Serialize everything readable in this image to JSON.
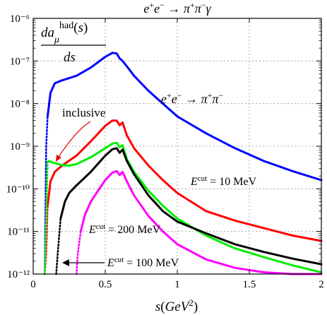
{
  "chart_data": {
    "type": "line",
    "title": "e+e− → π+π−γ",
    "xlabel": "s(GeV²)",
    "ylabel": "da_μ^had(s)/ds",
    "xlim": [
      0,
      2
    ],
    "ylim": [
      1e-12,
      1e-06
    ],
    "yscale": "log",
    "grid": true,
    "x_ticks": [
      0,
      0.5,
      1,
      1.5,
      2
    ],
    "x_tick_labels": [
      "0",
      "0.5",
      "1",
      "1.5",
      "2"
    ],
    "y_ticks": [
      1e-12,
      1e-11,
      1e-10,
      1e-09,
      1e-08,
      1e-07,
      1e-06
    ],
    "y_tick_labels": [
      "10⁻¹²",
      "10⁻¹¹",
      "10⁻¹⁰",
      "10⁻⁹",
      "10⁻⁸",
      "10⁻⁷",
      "10⁻⁶"
    ],
    "series": [
      {
        "name": "e+e− → π+π−",
        "color": "#0000ff",
        "x": [
          0.08,
          0.09,
          0.1,
          0.12,
          0.15,
          0.2,
          0.3,
          0.4,
          0.5,
          0.55,
          0.58,
          0.6,
          0.62,
          0.65,
          0.7,
          0.8,
          0.9,
          1.0,
          1.2,
          1.4,
          1.6,
          1.8,
          2.0
        ],
        "y": [
          1e-12,
          1e-09,
          5e-09,
          1.8e-08,
          3e-08,
          3.5e-08,
          4.5e-08,
          7e-08,
          1.25e-07,
          1.55e-07,
          1.5e-07,
          1.15e-07,
          1e-07,
          7.5e-08,
          4.5e-08,
          2e-08,
          1e-08,
          5e-09,
          2e-09,
          9e-10,
          4.5e-10,
          2.6e-10,
          1.6e-10
        ]
      },
      {
        "name": "E^cut = 10 MeV",
        "color": "#ff0000",
        "x": [
          0.08,
          0.09,
          0.1,
          0.12,
          0.15,
          0.2,
          0.3,
          0.4,
          0.5,
          0.55,
          0.58,
          0.6,
          0.62,
          0.65,
          0.7,
          0.8,
          0.9,
          1.0,
          1.2,
          1.4,
          1.6,
          1.8,
          2.0
        ],
        "y": [
          1e-12,
          3e-12,
          4e-11,
          1.5e-10,
          2.5e-10,
          3.5e-10,
          6e-10,
          1.3e-09,
          3e-09,
          4e-09,
          4e-09,
          3.1e-09,
          3.6e-09,
          1.8e-09,
          9e-10,
          3.5e-10,
          1.6e-10,
          8e-11,
          3e-11,
          1.8e-11,
          1.2e-11,
          8e-12,
          6e-12
        ]
      },
      {
        "name": "inclusive",
        "color": "#00ee00",
        "x": [
          0.08,
          0.09,
          0.1,
          0.11,
          0.12,
          0.15,
          0.2,
          0.25,
          0.3,
          0.4,
          0.5,
          0.55,
          0.58,
          0.6,
          0.62,
          0.65,
          0.7,
          0.8,
          0.9,
          1.0,
          1.2,
          1.4,
          1.6,
          1.8,
          2.0
        ],
        "y": [
          1e-12,
          2e-11,
          4.2e-10,
          4.5e-10,
          4.3e-10,
          4e-10,
          3.6e-10,
          3.5e-10,
          3.8e-10,
          5.5e-10,
          9e-10,
          1.15e-09,
          1.2e-09,
          9.5e-10,
          1.05e-09,
          5e-10,
          2.5e-10,
          9e-11,
          4e-11,
          2e-11,
          8e-12,
          4e-12,
          2.5e-12,
          1.6e-12,
          1.1e-12
        ]
      },
      {
        "name": "E^cut = 100 MeV",
        "color": "#000000",
        "x": [
          0.16,
          0.17,
          0.19,
          0.22,
          0.25,
          0.3,
          0.4,
          0.5,
          0.55,
          0.58,
          0.6,
          0.62,
          0.65,
          0.7,
          0.8,
          0.9,
          1.0,
          1.2,
          1.4,
          1.6,
          1.8,
          2.0
        ],
        "y": [
          1e-12,
          3e-12,
          2e-11,
          5e-11,
          8e-11,
          1.2e-10,
          2.5e-10,
          6e-10,
          8.5e-10,
          9e-10,
          7e-10,
          8.3e-10,
          4.5e-10,
          2.2e-10,
          7e-11,
          3e-11,
          1.7e-11,
          9e-12,
          5e-12,
          3.3e-12,
          2.3e-12,
          1.7e-12
        ]
      },
      {
        "name": "E^cut = 200 MeV",
        "color": "#ff00ff",
        "x": [
          0.3,
          0.31,
          0.33,
          0.36,
          0.4,
          0.45,
          0.5,
          0.55,
          0.58,
          0.6,
          0.62,
          0.65,
          0.7,
          0.8,
          0.9,
          1.0,
          1.2,
          1.4,
          1.6,
          1.8,
          2.0
        ],
        "y": [
          1e-12,
          3e-12,
          1e-11,
          2.5e-11,
          5e-11,
          9e-11,
          1.6e-10,
          2.4e-10,
          2.6e-10,
          2.1e-10,
          2.5e-10,
          1.5e-10,
          7e-11,
          2.3e-11,
          1e-11,
          5e-12,
          2.2e-12,
          1.4e-12,
          1.1e-12,
          1e-12,
          1e-12
        ]
      }
    ],
    "annotations": [
      {
        "text": "e+e− → π+π−",
        "points_to": "blue curve"
      },
      {
        "text": "inclusive",
        "points_to": "green curve"
      },
      {
        "text": "E^cut = 10 MeV",
        "points_to": "red curve"
      },
      {
        "text": "E^cut = 200 MeV",
        "points_to": "magenta curve"
      },
      {
        "text": "E^cut = 100 MeV",
        "points_to": "black curve"
      }
    ]
  }
}
